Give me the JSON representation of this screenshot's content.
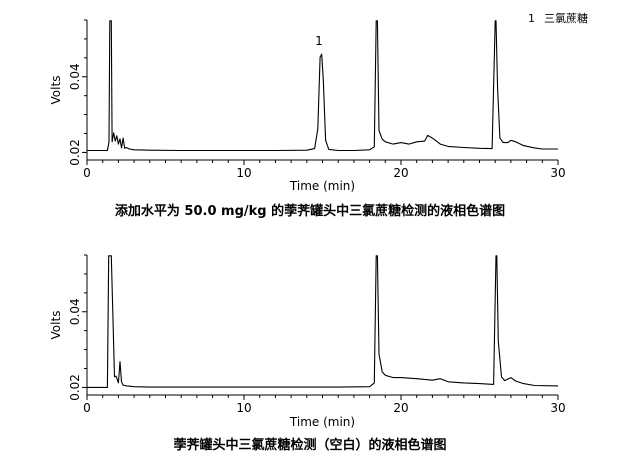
{
  "legend": {
    "marker": "1",
    "name": "三氯蔗糖"
  },
  "chart_data": [
    {
      "type": "line",
      "title": "添加水平为 50.0 mg/kg 的荸荠罐头中三氯蔗糖检测的液相色谱图",
      "xlabel": "Time (min)",
      "ylabel": "Volts",
      "xlim": [
        0,
        30
      ],
      "ylim": [
        0.018,
        0.055
      ],
      "x_ticks": [
        0,
        10,
        20,
        30
      ],
      "y_ticks": [
        0.02,
        0.04
      ],
      "grid": false,
      "peak_annotations": [
        {
          "label": "1",
          "x": 14.9
        }
      ],
      "series": [
        {
          "x": [
            0,
            1.3,
            1.4,
            1.45,
            1.5,
            1.55,
            1.6,
            1.7,
            1.8,
            1.9,
            2.0,
            2.1,
            2.2,
            2.3,
            2.4,
            2.5,
            2.7,
            3.0,
            4.0,
            6.0,
            8.0,
            10.0,
            12.0,
            14.0,
            14.5,
            14.7,
            14.85,
            14.95,
            15.05,
            15.2,
            15.4,
            16.0,
            17.0,
            18.0,
            18.3,
            18.42,
            18.5,
            18.6,
            18.8,
            19.0,
            19.5,
            20.0,
            20.5,
            21.0,
            21.5,
            21.7,
            22.0,
            22.5,
            23.0,
            24.0,
            25.0,
            25.8,
            26.0,
            26.05,
            26.15,
            26.3,
            26.5,
            26.8,
            27.0,
            27.3,
            27.8,
            28.5,
            29.0,
            30.0
          ],
          "y": [
            0.0205,
            0.0205,
            0.0228,
            0.0548,
            0.0548,
            0.0548,
            0.0228,
            0.0252,
            0.023,
            0.0244,
            0.0222,
            0.0236,
            0.0212,
            0.0238,
            0.0211,
            0.0213,
            0.0209,
            0.0207,
            0.0206,
            0.0205,
            0.0205,
            0.0205,
            0.0205,
            0.0206,
            0.021,
            0.0262,
            0.0452,
            0.046,
            0.0392,
            0.0232,
            0.0208,
            0.0205,
            0.0205,
            0.0207,
            0.0215,
            0.0548,
            0.0548,
            0.0258,
            0.0235,
            0.0228,
            0.0222,
            0.0226,
            0.0222,
            0.0228,
            0.023,
            0.0245,
            0.0238,
            0.0222,
            0.0216,
            0.0213,
            0.0211,
            0.021,
            0.0548,
            0.0548,
            0.0368,
            0.0238,
            0.0226,
            0.0226,
            0.0232,
            0.0228,
            0.0218,
            0.0212,
            0.0209,
            0.0209
          ]
        }
      ]
    },
    {
      "type": "line",
      "title": "荸荠罐头中三氯蔗糖检测（空白）的液相色谱图",
      "xlabel": "Time (min)",
      "ylabel": "Volts",
      "xlim": [
        0,
        30
      ],
      "ylim": [
        0.018,
        0.055
      ],
      "x_ticks": [
        0,
        10,
        20,
        30
      ],
      "y_ticks": [
        0.02,
        0.04
      ],
      "grid": false,
      "series": [
        {
          "x": [
            0,
            1.3,
            1.38,
            1.45,
            1.55,
            1.65,
            1.75,
            1.85,
            2.0,
            2.1,
            2.2,
            2.3,
            2.5,
            3.0,
            4.0,
            6.0,
            8.0,
            10.0,
            12.0,
            14.0,
            16.0,
            18.0,
            18.3,
            18.42,
            18.5,
            18.6,
            18.8,
            19.0,
            19.5,
            20.0,
            21.0,
            22.0,
            22.5,
            23.0,
            24.0,
            25.0,
            25.9,
            26.05,
            26.1,
            26.2,
            26.4,
            26.6,
            27.0,
            27.3,
            27.8,
            28.5,
            30.0
          ],
          "y": [
            0.02,
            0.02,
            0.0548,
            0.0548,
            0.0548,
            0.0388,
            0.0228,
            0.023,
            0.0212,
            0.0268,
            0.0215,
            0.0206,
            0.0204,
            0.0202,
            0.0201,
            0.0201,
            0.0201,
            0.0201,
            0.0201,
            0.0201,
            0.0201,
            0.0202,
            0.0212,
            0.0548,
            0.0548,
            0.0288,
            0.0241,
            0.0232,
            0.0226,
            0.0226,
            0.0223,
            0.0219,
            0.0223,
            0.0215,
            0.0212,
            0.021,
            0.0208,
            0.0548,
            0.0548,
            0.0322,
            0.0228,
            0.0218,
            0.0226,
            0.0217,
            0.021,
            0.0205,
            0.0204
          ]
        }
      ]
    }
  ]
}
